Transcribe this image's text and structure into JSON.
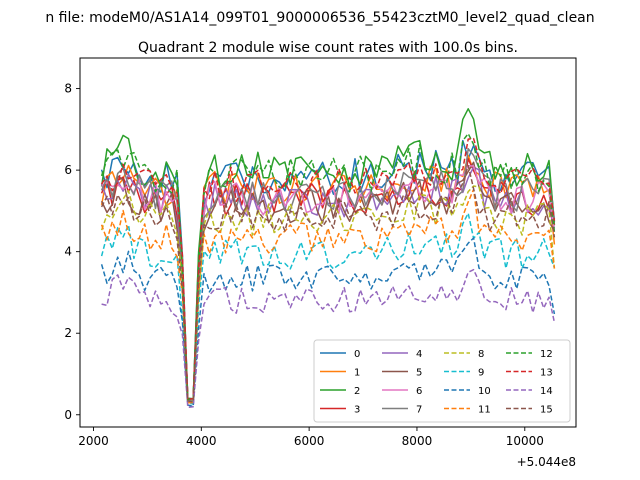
{
  "chart_data": {
    "type": "line",
    "suptitle": "n file: modeM0/AS1A14_099T01_9000006536_55423cztM0_level2_quad_clean",
    "title": "Quadrant 2 module wise count rates with 100.0s bins.",
    "xlabel": "",
    "ylabel": "",
    "x_offset_label": "+5.044e8",
    "xlim": [
      1750,
      10950
    ],
    "ylim": [
      -0.3,
      8.75
    ],
    "xticks": [
      2000,
      4000,
      6000,
      8000,
      10000
    ],
    "xtick_labels": [
      "2000",
      "4000",
      "6000",
      "8000",
      "10000"
    ],
    "yticks": [
      0,
      2,
      4,
      6,
      8
    ],
    "ytick_labels": [
      "0",
      "2",
      "4",
      "6",
      "8"
    ],
    "x_start": 2150,
    "x_step": 100,
    "n_points": 85,
    "legend_position": "lower-right",
    "legend_columns": 4,
    "series": [
      {
        "name": "0",
        "color": "#1f77b4",
        "dashed": false,
        "level": 5.85,
        "flare": 6.55
      },
      {
        "name": "1",
        "color": "#ff7f0e",
        "dashed": false,
        "level": 5.55,
        "flare": 6.35
      },
      {
        "name": "2",
        "color": "#2ca02c",
        "dashed": false,
        "level": 6.0,
        "flare": 7.35
      },
      {
        "name": "3",
        "color": "#d62728",
        "dashed": false,
        "level": 5.3,
        "flare": 6.1
      },
      {
        "name": "4",
        "color": "#9467bd",
        "dashed": false,
        "level": 5.25,
        "flare": 6.05
      },
      {
        "name": "5",
        "color": "#8c564b",
        "dashed": false,
        "level": 5.1,
        "flare": 6.0
      },
      {
        "name": "6",
        "color": "#e377c2",
        "dashed": false,
        "level": 5.3,
        "flare": 5.95
      },
      {
        "name": "7",
        "color": "#7f7f7f",
        "dashed": false,
        "level": 5.4,
        "flare": 6.1
      },
      {
        "name": "8",
        "color": "#bcbd22",
        "dashed": true,
        "level": 4.8,
        "flare": 5.8
      },
      {
        "name": "9",
        "color": "#17becf",
        "dashed": true,
        "level": 3.95,
        "flare": 4.7
      },
      {
        "name": "10",
        "color": "#1f77b4",
        "dashed": true,
        "level": 3.35,
        "flare": 4.05
      },
      {
        "name": "11",
        "color": "#ff7f0e",
        "dashed": true,
        "level": 4.35,
        "flare": 5.3
      },
      {
        "name": "12",
        "color": "#2ca02c",
        "dashed": true,
        "level": 5.9,
        "flare": 6.65
      },
      {
        "name": "13",
        "color": "#d62728",
        "dashed": true,
        "level": 5.65,
        "flare": 6.45
      },
      {
        "name": "14",
        "color": "#9467bd",
        "dashed": true,
        "level": 2.8,
        "flare": 3.45
      },
      {
        "name": "15",
        "color": "#8c564b",
        "dashed": true,
        "level": 4.9,
        "flare": 5.7
      }
    ]
  }
}
